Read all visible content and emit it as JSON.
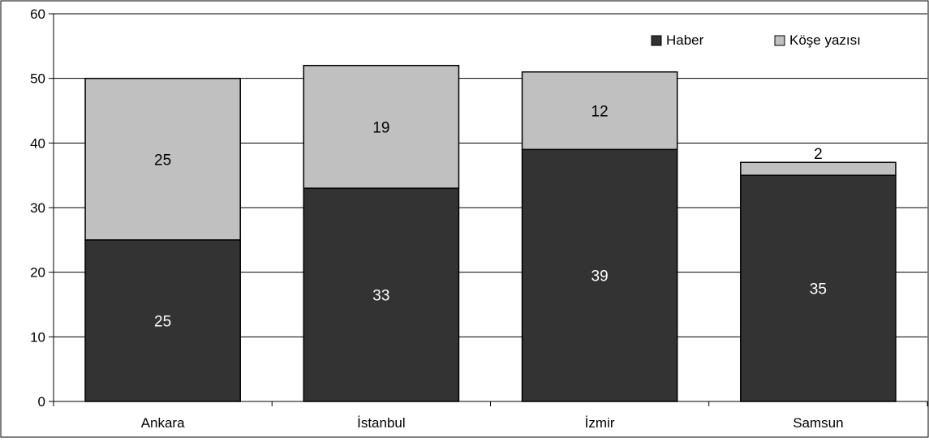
{
  "chart_data": {
    "type": "bar",
    "stacked": true,
    "categories": [
      "Ankara",
      "İstanbul",
      "İzmir",
      "Samsun"
    ],
    "series": [
      {
        "name": "Haber",
        "values": [
          25,
          33,
          39,
          35
        ],
        "color": "#333333",
        "label_color": "#ffffff"
      },
      {
        "name": "Köşe yazısı",
        "values": [
          25,
          19,
          12,
          2
        ],
        "color": "#c0c0c0",
        "label_color": "#000000"
      }
    ],
    "ylim": [
      0,
      60
    ],
    "yticks": [
      0,
      10,
      20,
      30,
      40,
      50,
      60
    ],
    "grid": true,
    "legend_position": "top-right",
    "title": "",
    "xlabel": "",
    "ylabel": ""
  }
}
